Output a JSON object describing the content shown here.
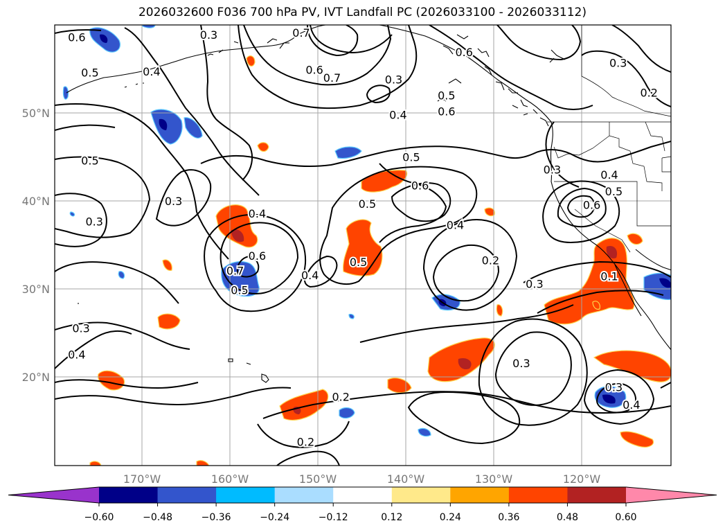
{
  "title": "2026032600 F036 700 hPa PV, IVT Landfall PC (2026033100 - 2026033112)",
  "lat_labels": [
    "50°N",
    "40°N",
    "30°N",
    "20°N"
  ],
  "lon_labels": [
    "170°W",
    "160°W",
    "150°W",
    "140°W",
    "130°W",
    "120°W"
  ],
  "colorbar": {
    "ticks": [
      "−0.60",
      "−0.48",
      "−0.36",
      "−0.24",
      "−0.12",
      "0.12",
      "0.24",
      "0.36",
      "0.48",
      "0.60"
    ],
    "colors": [
      "#9933cc",
      "#000088",
      "#3355cc",
      "#00bbff",
      "#aaddff",
      "#ffffff",
      "#ffe98a",
      "#ffa500",
      "#ff4400",
      "#b22222",
      "#ff88aa"
    ],
    "extend": "both"
  },
  "contour_labels": [
    {
      "text": "0.6",
      "lon": -177.5,
      "lat": 58.5
    },
    {
      "text": "0.3",
      "lon": -162.5,
      "lat": 58.8
    },
    {
      "text": "0.5",
      "lon": -176.0,
      "lat": 54.5
    },
    {
      "text": "0.4",
      "lon": -169.0,
      "lat": 54.6
    },
    {
      "text": "0.7",
      "lon": -152.0,
      "lat": 59.0
    },
    {
      "text": "0.6",
      "lon": -150.5,
      "lat": 54.8
    },
    {
      "text": "0.7",
      "lon": -148.5,
      "lat": 53.9
    },
    {
      "text": "0.3",
      "lon": -141.5,
      "lat": 53.7
    },
    {
      "text": "0.6",
      "lon": -133.5,
      "lat": 56.8
    },
    {
      "text": "0.5",
      "lon": -135.5,
      "lat": 51.9
    },
    {
      "text": "0.6",
      "lon": -135.5,
      "lat": 50.1
    },
    {
      "text": "0.4",
      "lon": -141.0,
      "lat": 49.7
    },
    {
      "text": "0.3",
      "lon": -116.0,
      "lat": 55.6
    },
    {
      "text": "0.2",
      "lon": -112.5,
      "lat": 52.2
    },
    {
      "text": "0.5",
      "lon": -176.0,
      "lat": 44.5
    },
    {
      "text": "0.5",
      "lon": -139.5,
      "lat": 44.9
    },
    {
      "text": "0.3",
      "lon": -123.5,
      "lat": 43.5
    },
    {
      "text": "0.4",
      "lon": -117.0,
      "lat": 42.9
    },
    {
      "text": "0.3",
      "lon": -166.5,
      "lat": 39.9
    },
    {
      "text": "0.6",
      "lon": -138.5,
      "lat": 41.7
    },
    {
      "text": "0.5",
      "lon": -144.5,
      "lat": 39.6
    },
    {
      "text": "0.5",
      "lon": -116.5,
      "lat": 41.0
    },
    {
      "text": "0.6",
      "lon": -119.0,
      "lat": 39.5
    },
    {
      "text": "0.3",
      "lon": -175.5,
      "lat": 37.6
    },
    {
      "text": "0.4",
      "lon": -157.0,
      "lat": 38.5
    },
    {
      "text": "0.4",
      "lon": -134.5,
      "lat": 37.2
    },
    {
      "text": "0.6",
      "lon": -157.0,
      "lat": 33.7
    },
    {
      "text": "0.2",
      "lon": -130.5,
      "lat": 33.2
    },
    {
      "text": "0.5",
      "lon": -145.5,
      "lat": 33.0
    },
    {
      "text": "0.7",
      "lon": -159.5,
      "lat": 32.0
    },
    {
      "text": "0.4",
      "lon": -151.0,
      "lat": 31.5
    },
    {
      "text": "0.5",
      "lon": -159.0,
      "lat": 29.8
    },
    {
      "text": "0.3",
      "lon": -125.5,
      "lat": 30.5
    },
    {
      "text": "0.1",
      "lon": -117.0,
      "lat": 31.4
    },
    {
      "text": "0.3",
      "lon": -177.0,
      "lat": 25.5
    },
    {
      "text": "0.4",
      "lon": -177.5,
      "lat": 22.5
    },
    {
      "text": "0.3",
      "lon": -127.0,
      "lat": 21.5
    },
    {
      "text": "0.2",
      "lon": -147.5,
      "lat": 17.7
    },
    {
      "text": "0.3",
      "lon": -116.5,
      "lat": 18.8
    },
    {
      "text": "0.4",
      "lon": -114.5,
      "lat": 16.8
    },
    {
      "text": "0.2",
      "lon": -151.5,
      "lat": 12.6
    }
  ]
}
